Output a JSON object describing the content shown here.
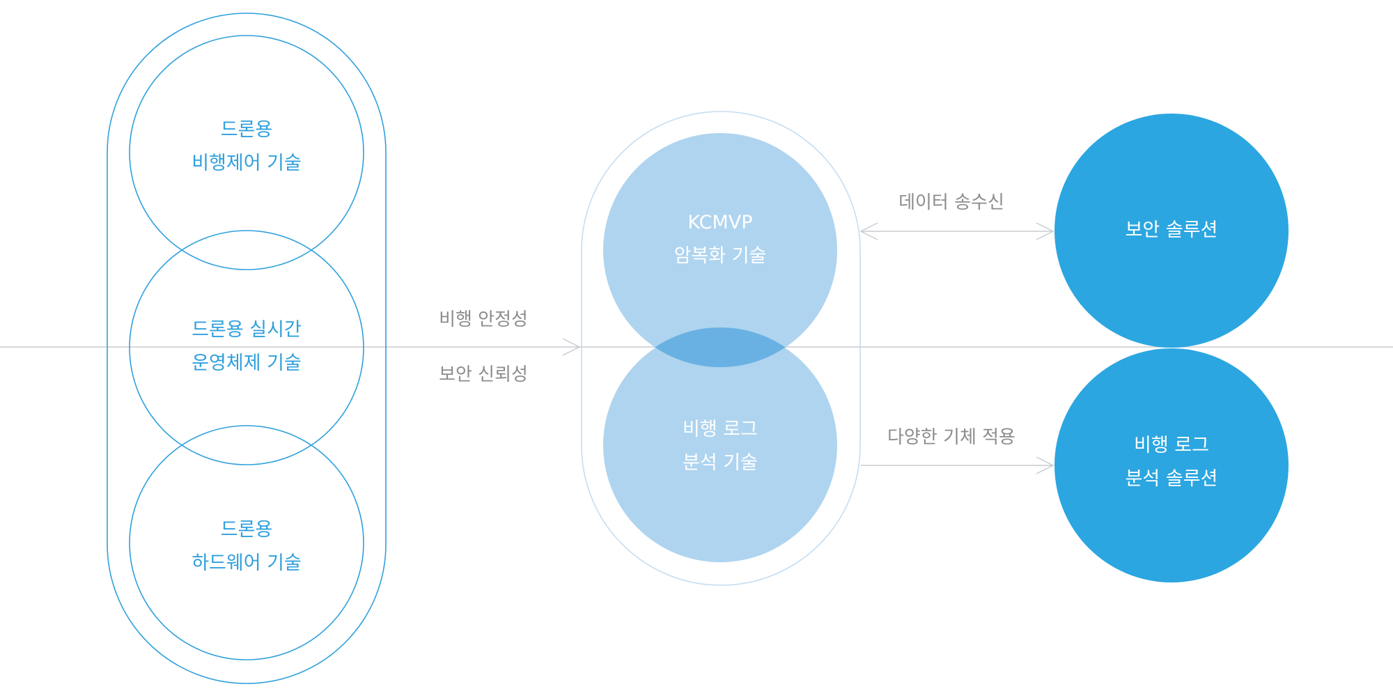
{
  "left_group": {
    "items": [
      {
        "line1": "드론용",
        "line2": "비행제어 기술"
      },
      {
        "line1": "드론용 실시간",
        "line2": "운영체제 기술"
      },
      {
        "line1": "드론용",
        "line2": "하드웨어 기술"
      }
    ]
  },
  "middle_labels": {
    "stability": "비행 안정성",
    "reliability": "보안 신뢰성"
  },
  "center_group": {
    "items": [
      {
        "line1": "KCMVP",
        "line2": "암복화 기술"
      },
      {
        "line1": "비행 로그",
        "line2": "분석 기술"
      }
    ]
  },
  "edge_labels": {
    "top": "데이터 송수신",
    "bottom": "다양한 기체 적용"
  },
  "right_group": {
    "items": [
      {
        "line1": "보안 솔루션"
      },
      {
        "line1": "비행 로그",
        "line2": "분석 솔루션"
      }
    ]
  },
  "colors": {
    "outline_blue": "#2fa0dc",
    "light_fill": "#afd4ef",
    "overlap_fill": "#6ab1e3",
    "solid_blue": "#2ba6e0",
    "line_gray": "#c9ccd0",
    "text_gray": "#8c8c8c"
  }
}
